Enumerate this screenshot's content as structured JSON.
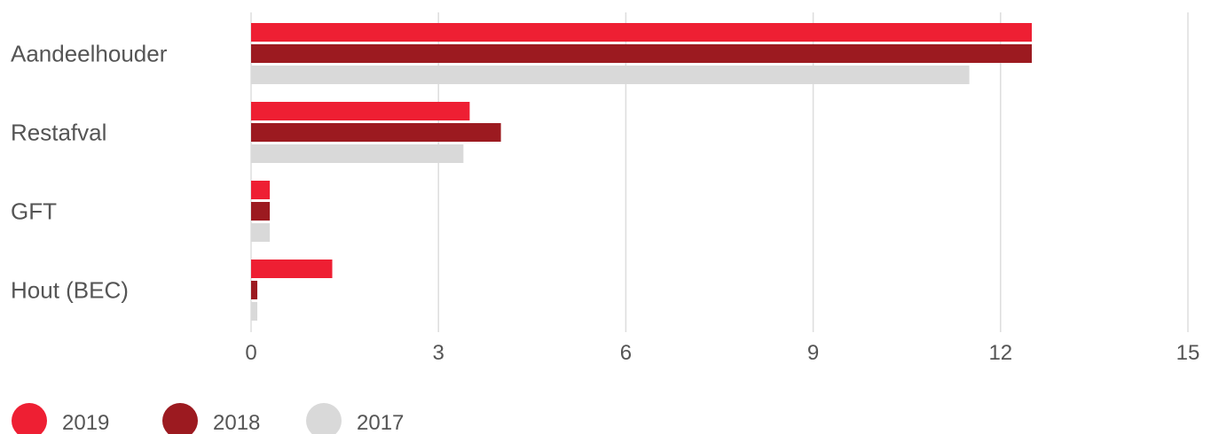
{
  "chart_data": {
    "type": "bar",
    "orientation": "horizontal",
    "categories": [
      "Aandeelhouder",
      "Restafval",
      "GFT",
      "Hout (BEC)"
    ],
    "series": [
      {
        "name": "2019",
        "color": "#ee1f33",
        "values": [
          12.5,
          3.5,
          0.3,
          1.3
        ]
      },
      {
        "name": "2018",
        "color": "#9c1a20",
        "values": [
          12.5,
          4.0,
          0.3,
          0.1
        ]
      },
      {
        "name": "2017",
        "color": "#d9d9d9",
        "values": [
          11.5,
          3.4,
          0.3,
          0.1
        ]
      }
    ],
    "xlim": [
      0,
      15
    ],
    "xticks": [
      "0",
      "3",
      "6",
      "9",
      "12",
      "15"
    ],
    "grid": true,
    "legend_position": "bottom-left"
  }
}
